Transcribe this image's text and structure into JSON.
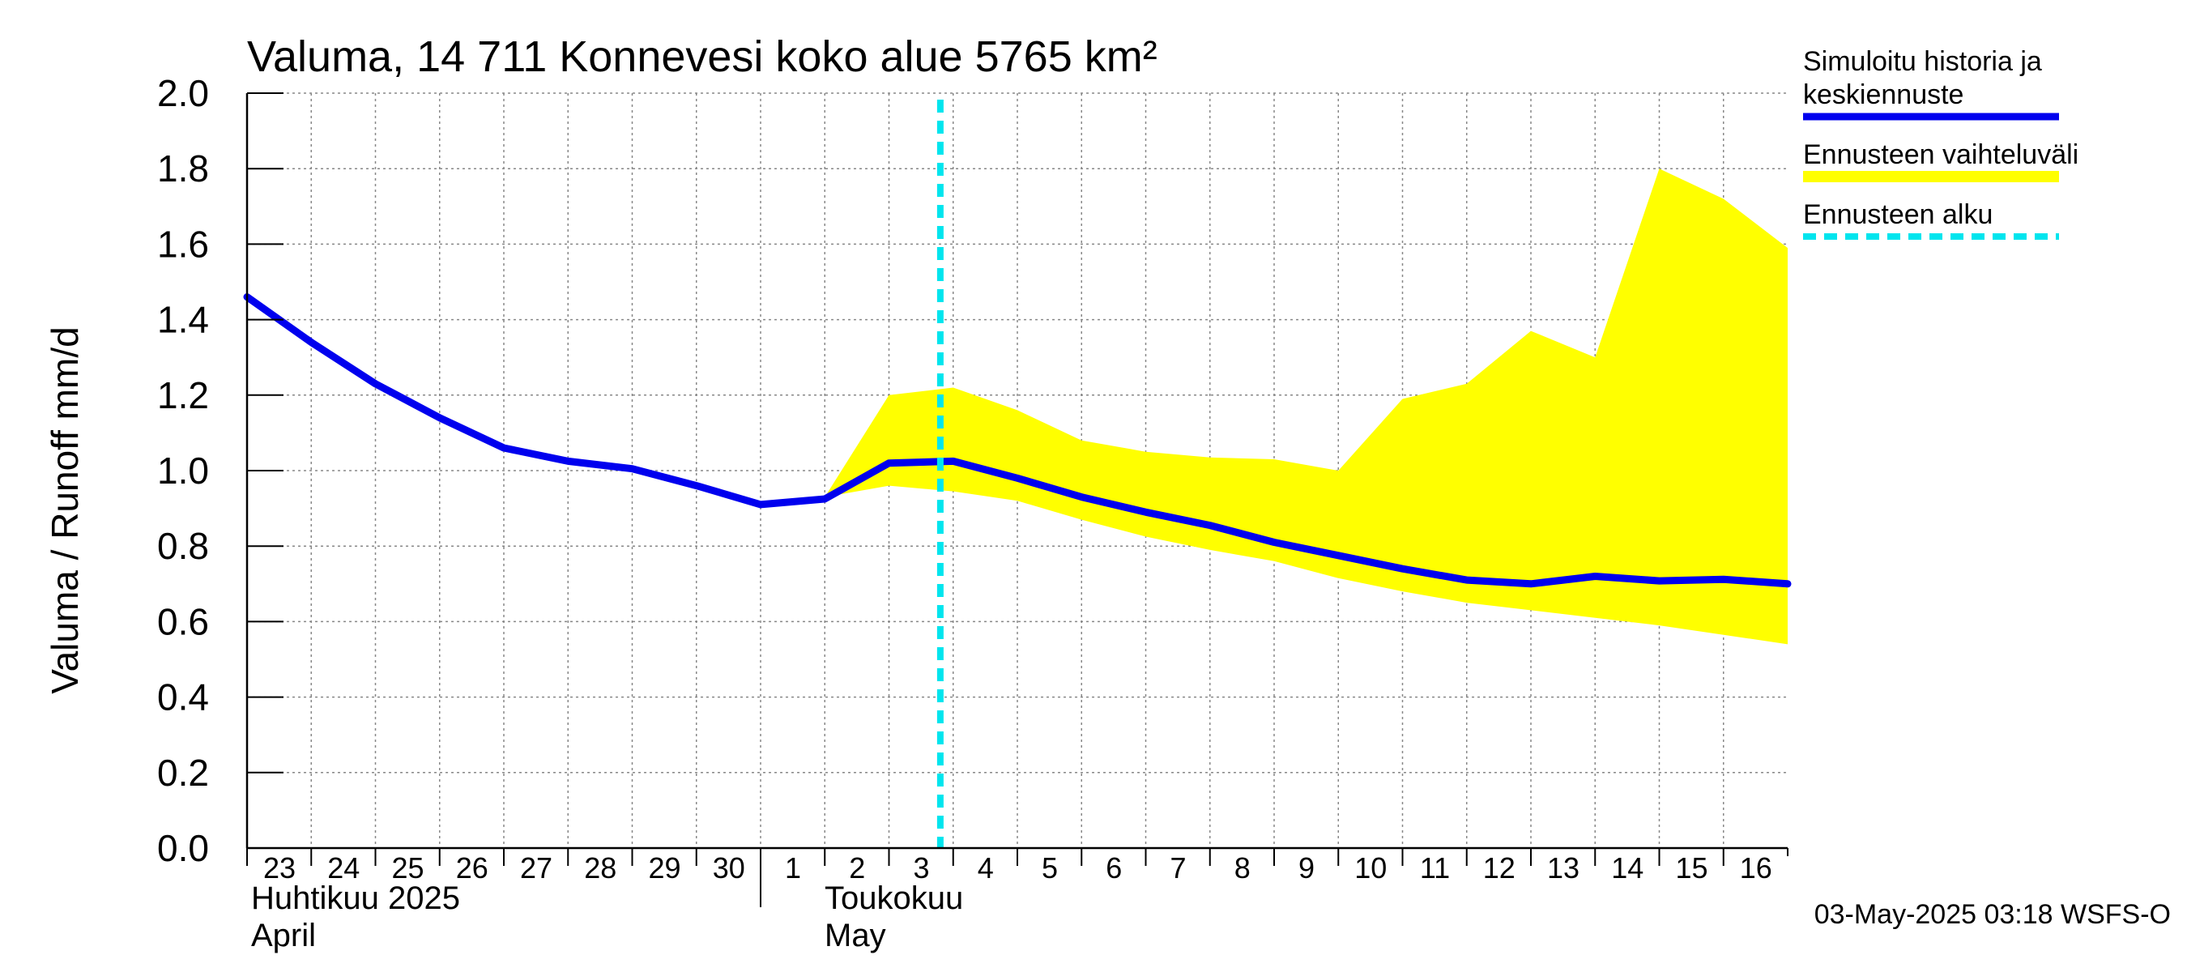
{
  "title": "Valuma, 14 711 Konnevesi koko alue 5765 km²",
  "ylabel": "Valuma / Runoff     mm/d",
  "timestamp": "03-May-2025 03:18 WSFS-O",
  "months": [
    {
      "line1": "Huhtikuu  2025",
      "line2": "April",
      "day": 23
    },
    {
      "line1": "Toukokuu",
      "line2": "May",
      "day": 32
    }
  ],
  "legend": {
    "history": "Simuloitu historia ja keskiennuste",
    "history_line1": "Simuloitu historia ja",
    "history_line2": "keskiennuste",
    "range": "Ennusteen vaihteluväli",
    "start": "Ennusteen alku"
  },
  "colors": {
    "history": "#0000ee",
    "range": "#ffff00",
    "start": "#00e5ee",
    "grid": "#888888"
  },
  "chart_data": {
    "type": "line",
    "title": "Valuma, 14 711 Konnevesi koko alue 5765 km²",
    "ylabel": "Valuma / Runoff     mm/d",
    "ylim": [
      0.0,
      2.0
    ],
    "yticks": [
      "0.0",
      "0.2",
      "0.4",
      "0.6",
      "0.8",
      "1.0",
      "1.2",
      "1.4",
      "1.6",
      "1.8",
      "2.0"
    ],
    "x_ticks": [
      {
        "day": 23,
        "label": "23"
      },
      {
        "day": 24,
        "label": "24"
      },
      {
        "day": 25,
        "label": "25"
      },
      {
        "day": 26,
        "label": "26"
      },
      {
        "day": 27,
        "label": "27"
      },
      {
        "day": 28,
        "label": "28"
      },
      {
        "day": 29,
        "label": "29"
      },
      {
        "day": 30,
        "label": "30"
      },
      {
        "day": 31,
        "label": "1"
      },
      {
        "day": 32,
        "label": "2"
      },
      {
        "day": 33,
        "label": "3"
      },
      {
        "day": 34,
        "label": "4"
      },
      {
        "day": 35,
        "label": "5"
      },
      {
        "day": 36,
        "label": "6"
      },
      {
        "day": 37,
        "label": "7"
      },
      {
        "day": 38,
        "label": "8"
      },
      {
        "day": 39,
        "label": "9"
      },
      {
        "day": 40,
        "label": "10"
      },
      {
        "day": 41,
        "label": "11"
      },
      {
        "day": 42,
        "label": "12"
      },
      {
        "day": 43,
        "label": "13"
      },
      {
        "day": 44,
        "label": "14"
      },
      {
        "day": 45,
        "label": "15"
      },
      {
        "day": 46,
        "label": "16"
      }
    ],
    "x_range": [
      23,
      47
    ],
    "forecast_start": 33.8,
    "series": [
      {
        "name": "Simuloitu historia ja keskiennuste",
        "points": [
          [
            23,
            1.46
          ],
          [
            24,
            1.34
          ],
          [
            25,
            1.23
          ],
          [
            26,
            1.14
          ],
          [
            27,
            1.06
          ],
          [
            28,
            1.025
          ],
          [
            29,
            1.005
          ],
          [
            30,
            0.96
          ],
          [
            31,
            0.91
          ],
          [
            32,
            0.925
          ],
          [
            33,
            1.02
          ],
          [
            34,
            1.025
          ],
          [
            35,
            0.98
          ],
          [
            36,
            0.93
          ],
          [
            37,
            0.89
          ],
          [
            38,
            0.855
          ],
          [
            39,
            0.81
          ],
          [
            40,
            0.775
          ],
          [
            41,
            0.74
          ],
          [
            42,
            0.71
          ],
          [
            43,
            0.7
          ],
          [
            44,
            0.72
          ],
          [
            45,
            0.708
          ],
          [
            46,
            0.712
          ],
          [
            47,
            0.7
          ]
        ]
      },
      {
        "name": "Ennusteen vaihteluväli",
        "upper": [
          [
            32,
            0.93
          ],
          [
            33,
            1.2
          ],
          [
            34,
            1.22
          ],
          [
            35,
            1.16
          ],
          [
            36,
            1.08
          ],
          [
            37,
            1.05
          ],
          [
            38,
            1.035
          ],
          [
            39,
            1.03
          ],
          [
            40,
            1.0
          ],
          [
            41,
            1.19
          ],
          [
            42,
            1.23
          ],
          [
            43,
            1.37
          ],
          [
            44,
            1.3
          ],
          [
            45,
            1.8
          ],
          [
            46,
            1.72
          ],
          [
            47,
            1.59
          ]
        ],
        "lower": [
          [
            32,
            0.93
          ],
          [
            33,
            0.96
          ],
          [
            34,
            0.945
          ],
          [
            35,
            0.92
          ],
          [
            36,
            0.87
          ],
          [
            37,
            0.825
          ],
          [
            38,
            0.79
          ],
          [
            39,
            0.76
          ],
          [
            40,
            0.715
          ],
          [
            41,
            0.68
          ],
          [
            42,
            0.65
          ],
          [
            43,
            0.63
          ],
          [
            44,
            0.61
          ],
          [
            45,
            0.59
          ],
          [
            46,
            0.565
          ],
          [
            47,
            0.54
          ]
        ]
      }
    ]
  }
}
